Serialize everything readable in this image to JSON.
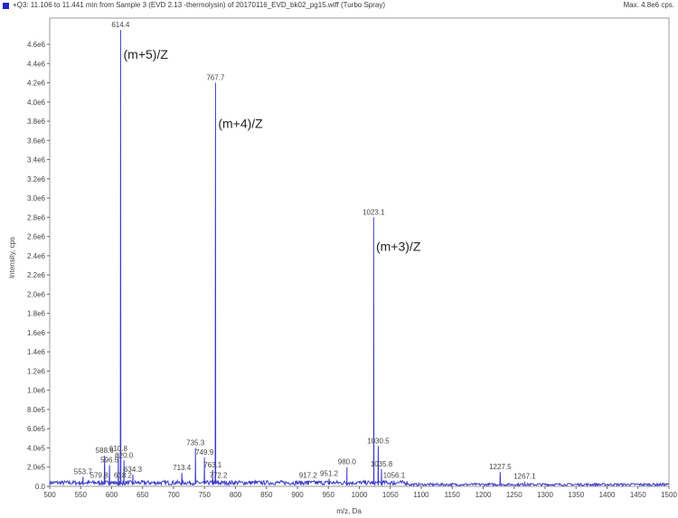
{
  "header": {
    "title": "+Q3: 11.106 to 11.441 min from Sample 3 (EVD 2.13 -thermolysin) of 20170116_EVD_bk02_pg15.wiff (Turbo Spray)",
    "max_label": "Max. 4.8e6 cps.",
    "marker_color": "#2323c8"
  },
  "chart_data": {
    "type": "line",
    "xlabel": "m/z, Da",
    "ylabel": "Intensity, cps",
    "xlim": [
      500,
      1500
    ],
    "ylim": [
      0,
      4800000.0
    ],
    "x_ticks": [
      500,
      550,
      600,
      650,
      700,
      750,
      800,
      850,
      900,
      950,
      1000,
      1050,
      1100,
      1150,
      1200,
      1250,
      1300,
      1350,
      1400,
      1450,
      1500
    ],
    "x_tick_labels": [
      "500",
      "550",
      "600",
      "650",
      "700",
      "750",
      "800",
      "850",
      "900",
      "950",
      "1000",
      "1050",
      "1100",
      "1150",
      "1200",
      "1250",
      "1300",
      "1350",
      "1400",
      "1450",
      "1500"
    ],
    "y_ticks": [
      0,
      200000,
      400000,
      600000,
      800000,
      1000000,
      1200000,
      1400000,
      1600000,
      1800000,
      2000000,
      2200000,
      2400000,
      2600000,
      2800000,
      3000000,
      3200000,
      3400000,
      3600000,
      3800000,
      4000000,
      4200000,
      4400000,
      4600000
    ],
    "y_tick_labels": [
      "0.0",
      "2.0e5",
      "4.0e5",
      "6.0e5",
      "8.0e5",
      "1.0e6",
      "1.2e6",
      "1.4e6",
      "1.6e6",
      "1.8e6",
      "2.0e6",
      "2.2e6",
      "2.4e6",
      "2.6e6",
      "2.8e6",
      "3.0e6",
      "3.2e6",
      "3.4e6",
      "3.6e6",
      "3.8e6",
      "4.0e6",
      "4.2e6",
      "4.4e6",
      "4.6e6"
    ],
    "line_color": "#3c3cc8",
    "peaks": [
      {
        "x": 553.7,
        "y": 100000,
        "label": "553.7"
      },
      {
        "x": 579.8,
        "y": 60000,
        "label": "579.8"
      },
      {
        "x": 588.6,
        "y": 320000,
        "label": "588.6"
      },
      {
        "x": 596.5,
        "y": 220000,
        "label": "596.5"
      },
      {
        "x": 610.8,
        "y": 340000,
        "label": "610.8"
      },
      {
        "x": 614.4,
        "y": 4750000,
        "label": "614.4"
      },
      {
        "x": 618.2,
        "y": 60000,
        "label": "618.2"
      },
      {
        "x": 620.0,
        "y": 270000,
        "label": "620.0"
      },
      {
        "x": 634.3,
        "y": 120000,
        "label": "634.3"
      },
      {
        "x": 713.4,
        "y": 140000,
        "label": "713.4"
      },
      {
        "x": 735.3,
        "y": 400000,
        "label": "735.3"
      },
      {
        "x": 749.9,
        "y": 300000,
        "label": "749.9"
      },
      {
        "x": 763.1,
        "y": 170000,
        "label": "763.1"
      },
      {
        "x": 767.7,
        "y": 4200000,
        "label": "767.7"
      },
      {
        "x": 772.2,
        "y": 60000,
        "label": "772.2"
      },
      {
        "x": 917.2,
        "y": 60000,
        "label": "917.2"
      },
      {
        "x": 951.2,
        "y": 80000,
        "label": "951.2"
      },
      {
        "x": 980.0,
        "y": 200000,
        "label": "980.0"
      },
      {
        "x": 1023.1,
        "y": 2800000,
        "label": "1023.1"
      },
      {
        "x": 1030.5,
        "y": 420000,
        "label": "1030.5"
      },
      {
        "x": 1035.8,
        "y": 180000,
        "label": "1035.8"
      },
      {
        "x": 1056.1,
        "y": 60000,
        "label": "1056.1"
      },
      {
        "x": 1227.5,
        "y": 150000,
        "label": "1227.5"
      },
      {
        "x": 1267.1,
        "y": 50000,
        "label": "1267.1"
      }
    ],
    "annotations": [
      {
        "text": "(m+5)/Z",
        "x": 619,
        "y": 4450000
      },
      {
        "text": "(m+4)/Z",
        "x": 772,
        "y": 3730000
      },
      {
        "text": "(m+3)/Z",
        "x": 1027,
        "y": 2450000
      }
    ]
  }
}
